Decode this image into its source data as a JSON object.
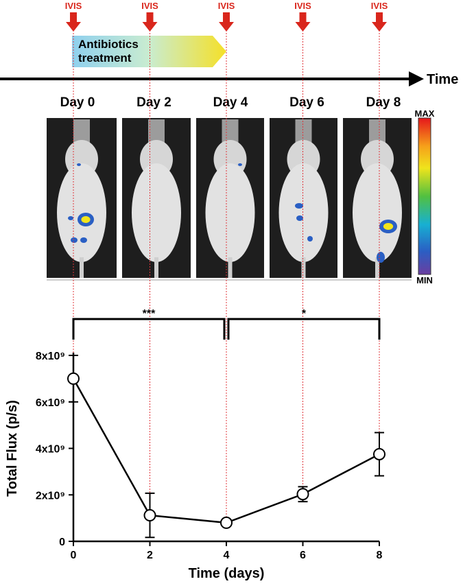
{
  "timeline": {
    "markers": [
      "IVIS",
      "IVIS",
      "IVIS",
      "IVIS",
      "IVIS"
    ],
    "treatment": [
      "Antibiotics",
      "treatment"
    ],
    "axis_label": "Time",
    "days": [
      "Day 0",
      "Day 2",
      "Day 4",
      "Day 6",
      "Day 8"
    ]
  },
  "colorbar": {
    "max": "MAX",
    "min": "MIN"
  },
  "significance": [
    "***",
    "*"
  ],
  "chart_data": {
    "type": "line",
    "x": [
      0,
      2,
      4,
      6,
      8
    ],
    "values": [
      7000000000,
      1120000000,
      800000000,
      2030000000,
      3750000000
    ],
    "errors": [
      1000000000,
      950000000,
      50000000,
      320000000,
      930000000
    ],
    "color": "#000000",
    "xlabel": "Time (days)",
    "ylabel": "Total Flux (p/s)",
    "xlim": [
      0,
      8
    ],
    "xticks": [
      0,
      2,
      4,
      6,
      8
    ],
    "ylim": [
      0,
      8000000000
    ],
    "yticks": [
      0,
      {
        "value": 2000000000,
        "label": "2x10⁹"
      },
      {
        "value": 4000000000,
        "label": "4x10⁹"
      },
      {
        "value": 6000000000,
        "label": "6x10⁹"
      },
      {
        "value": 8000000000,
        "label": "8x10⁹"
      }
    ]
  }
}
